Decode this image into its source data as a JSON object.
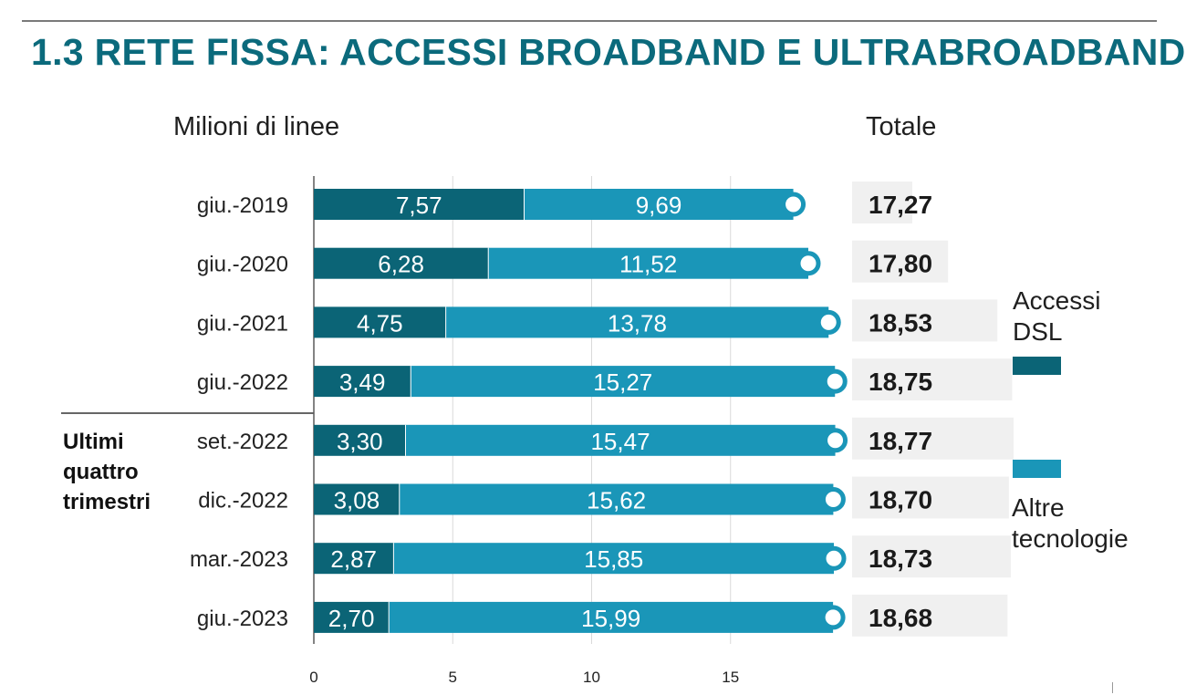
{
  "title": "1.3 RETE FISSA: ACCESSI BROADBAND E ULTRABROADBAND",
  "unit_label": "Milioni di linee",
  "totale_label": "Totale",
  "group_label": "Ultimi quattro trimestri",
  "legend": [
    {
      "label_line1": "Accessi",
      "label_line2": "DSL",
      "color": "#0b6476"
    },
    {
      "label_line1": "Altre",
      "label_line2": "tecnologie",
      "color": "#1a96b8"
    }
  ],
  "chart_data": {
    "type": "bar",
    "orientation": "horizontal",
    "stacked": true,
    "categories": [
      "giu.-2019",
      "giu.-2020",
      "giu.-2021",
      "giu.-2022",
      "set.-2022",
      "dic.-2022",
      "mar.-2023",
      "giu.-2023"
    ],
    "series": [
      {
        "name": "Accessi DSL",
        "color": "#0b6476",
        "values": [
          7.57,
          6.28,
          4.75,
          3.49,
          3.3,
          3.08,
          2.87,
          2.7
        ],
        "labels": [
          "7,57",
          "6,28",
          "4,75",
          "3,49",
          "3,30",
          "3,08",
          "2,87",
          "2,70"
        ]
      },
      {
        "name": "Altre tecnologie",
        "color": "#1a96b8",
        "values": [
          9.69,
          11.52,
          13.78,
          15.27,
          15.47,
          15.62,
          15.85,
          15.99
        ],
        "labels": [
          "9,69",
          "11,52",
          "13,78",
          "15,27",
          "15,47",
          "15,62",
          "15,85",
          "15,99"
        ]
      }
    ],
    "totals": [
      17.27,
      17.8,
      18.53,
      18.75,
      18.77,
      18.7,
      18.73,
      18.68
    ],
    "total_labels": [
      "17,27",
      "17,80",
      "18,53",
      "18,75",
      "18,77",
      "18,70",
      "18,73",
      "18,68"
    ],
    "xticks": [
      "0",
      "5",
      "10",
      "15"
    ],
    "xtick_values": [
      0,
      5,
      10,
      15
    ],
    "xlim": [
      0,
      20
    ],
    "grid": true
  }
}
